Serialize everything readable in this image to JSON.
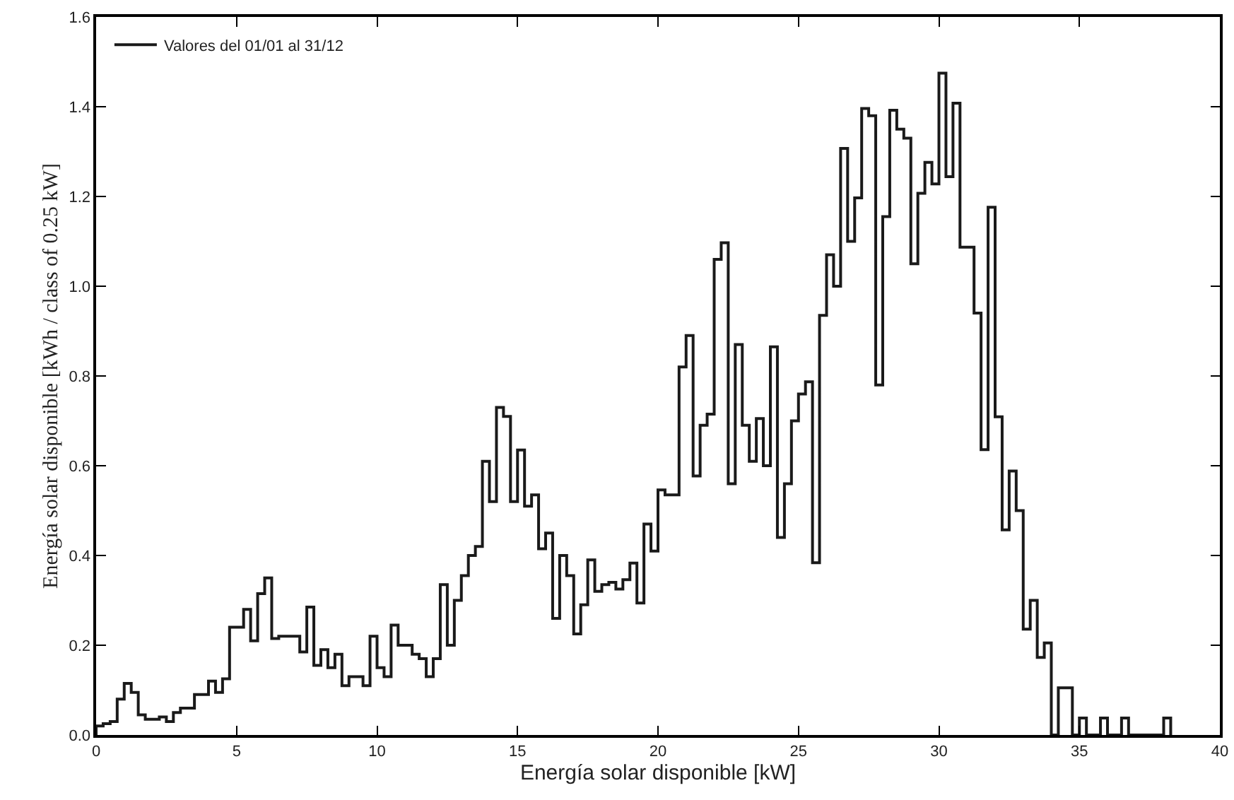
{
  "chart_data": {
    "type": "histogram",
    "xlabel": "Energía solar disponible [kW]",
    "ylabel": "Energía solar disponible [kWh / class of 0.25 kW]",
    "bins": [
      0,
      0.25,
      0.5,
      0.75,
      1,
      1.25,
      1.5,
      1.75,
      2,
      2.25,
      2.5,
      2.75,
      3,
      3.25,
      3.5,
      3.75,
      4,
      4.25,
      4.5,
      4.75,
      5,
      5.25,
      5.5,
      5.75,
      6,
      6.25,
      6.5,
      6.75,
      7,
      7.25,
      7.5,
      7.75,
      8,
      8.25,
      8.5,
      8.75,
      9,
      9.25,
      9.5,
      9.75,
      10,
      10.25,
      10.5,
      10.75,
      11,
      11.25,
      11.5,
      11.75,
      12,
      12.25,
      12.5,
      12.75,
      13,
      13.25,
      13.5,
      13.75,
      14,
      14.25,
      14.5,
      14.75,
      15,
      15.25,
      15.5,
      15.75,
      16,
      16.25,
      16.5,
      16.75,
      17,
      17.25,
      17.5,
      17.75,
      18,
      18.25,
      18.5,
      18.75,
      19,
      19.25,
      19.5,
      19.75,
      20,
      20.25,
      20.5,
      20.75,
      21,
      21.25,
      21.5,
      21.75,
      22,
      22.25,
      22.5,
      22.75,
      23,
      23.25,
      23.5,
      23.75,
      24,
      24.25,
      24.5,
      24.75,
      25,
      25.25,
      25.5,
      25.75,
      26,
      26.25,
      26.5,
      26.75,
      27,
      27.25,
      27.5,
      27.75,
      28,
      28.25,
      28.5,
      28.75,
      29,
      29.25,
      29.5,
      29.75,
      30,
      30.25,
      30.5,
      30.75,
      31,
      31.25,
      31.5,
      31.75,
      32,
      32.25,
      32.5,
      32.75,
      33,
      33.25,
      33.5,
      33.75,
      34,
      34.25,
      34.5,
      34.75,
      35,
      35.25,
      35.5,
      35.75,
      36,
      36.25,
      36.5,
      36.75,
      37,
      37.25,
      37.5,
      37.75,
      38,
      38.25
    ],
    "series": [
      {
        "name": "Valores del 01/01 al 31/12",
        "color": "#1a1a1a",
        "values": [
          0.02,
          0.025,
          0.03,
          0.08,
          0.115,
          0.095,
          0.045,
          0.035,
          0.035,
          0.04,
          0.03,
          0.05,
          0.06,
          0.06,
          0.09,
          0.09,
          0.12,
          0.095,
          0.125,
          0.24,
          0.24,
          0.28,
          0.21,
          0.315,
          0.35,
          0.215,
          0.22,
          0.22,
          0.22,
          0.185,
          0.285,
          0.155,
          0.19,
          0.15,
          0.18,
          0.11,
          0.13,
          0.13,
          0.11,
          0.22,
          0.15,
          0.13,
          0.245,
          0.2,
          0.2,
          0.18,
          0.17,
          0.13,
          0.17,
          0.335,
          0.2,
          0.3,
          0.355,
          0.4,
          0.42,
          0.61,
          0.52,
          0.73,
          0.71,
          0.52,
          0.635,
          0.51,
          0.535,
          0.415,
          0.45,
          0.26,
          0.4,
          0.355,
          0.225,
          0.29,
          0.39,
          0.32,
          0.335,
          0.34,
          0.325,
          0.346,
          0.383,
          0.294,
          0.47,
          0.41,
          0.546,
          0.535,
          0.535,
          0.82,
          0.89,
          0.577,
          0.69,
          0.715,
          1.06,
          1.097,
          0.56,
          0.87,
          0.69,
          0.61,
          0.705,
          0.6,
          0.865,
          0.44,
          0.56,
          0.7,
          0.76,
          0.787,
          0.384,
          0.935,
          1.07,
          1.0,
          1.307,
          1.1,
          1.197,
          1.396,
          1.38,
          0.78,
          1.155,
          1.392,
          1.35,
          1.33,
          1.05,
          1.207,
          1.276,
          1.228,
          1.475,
          1.244,
          1.408,
          1.087,
          1.087,
          0.94,
          0.636,
          1.176,
          0.709,
          0.457,
          0.588,
          0.5,
          0.236,
          0.3,
          0.173,
          0.205,
          0,
          0.105,
          0.105,
          0,
          0.038,
          0,
          0,
          0.038,
          0,
          0,
          0.038,
          0,
          0,
          0,
          0,
          0,
          0.038
        ]
      }
    ],
    "xlim": [
      0,
      40
    ],
    "xticks": [
      0,
      5,
      10,
      15,
      20,
      25,
      30,
      35,
      40
    ],
    "ylim": [
      0,
      1.6
    ],
    "yticks": [
      {
        "value": 0,
        "label": "0.0"
      },
      {
        "value": 0.2,
        "label": "0.2"
      },
      {
        "value": 0.4,
        "label": "0.4"
      },
      {
        "value": 0.6,
        "label": "0.6"
      },
      {
        "value": 0.8,
        "label": "0.8"
      },
      {
        "value": 1.0,
        "label": "1.0"
      },
      {
        "value": 1.2,
        "label": "1.2"
      },
      {
        "value": 1.4,
        "label": "1.4"
      },
      {
        "value": 1.6,
        "label": "1.6"
      }
    ],
    "legend": "top left",
    "grid": false,
    "line_style": "solid"
  }
}
